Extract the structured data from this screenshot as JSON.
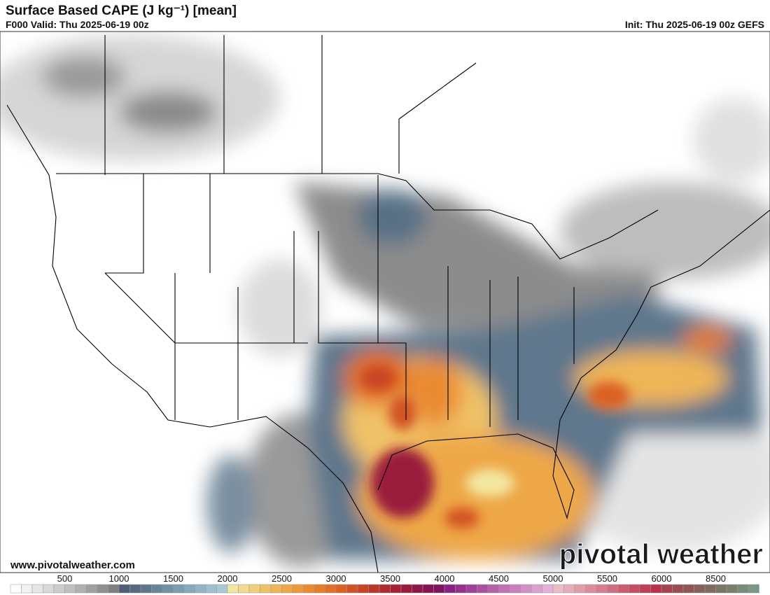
{
  "header": {
    "title": "Surface Based CAPE (J kg⁻¹) [mean]",
    "valid": "F000 Valid: Thu 2025-06-19 00z",
    "init": "Init: Thu 2025-06-19 00z GEFS"
  },
  "footer": {
    "url": "www.pivotalweather.com",
    "watermark": "pivotal weather"
  },
  "colorbar": {
    "labels": [
      "500",
      "1000",
      "1500",
      "2000",
      "2500",
      "3000",
      "3500",
      "4000",
      "4500",
      "5000",
      "5500",
      "6000",
      "8500"
    ],
    "colors": [
      "#ffffff",
      "#f2f2f2",
      "#e6e6e6",
      "#d9d9d9",
      "#cccccc",
      "#bfbfbf",
      "#b0b0b0",
      "#a0a0a0",
      "#8f8f8f",
      "#7f7f7f",
      "#4f5f73",
      "#576a7f",
      "#5f778c",
      "#688498",
      "#7191a4",
      "#7b9db0",
      "#86a9bb",
      "#92b4c4",
      "#9ebfcd",
      "#aac8d5",
      "#f3e6a0",
      "#f2db8c",
      "#f1cf79",
      "#f0c267",
      "#efb556",
      "#eea747",
      "#ed993a",
      "#ea8b30",
      "#e67d29",
      "#e26f24",
      "#dc6022",
      "#d35223",
      "#c94426",
      "#bd3729",
      "#b02b2d",
      "#a52233",
      "#9a1b3c",
      "#901647",
      "#871452",
      "#7f145e",
      "#8a1f86",
      "#95308f",
      "#a04098",
      "#ab50a1",
      "#b660aa",
      "#c070b3",
      "#ca80bc",
      "#d390c5",
      "#dca0cd",
      "#e5b0d6",
      "#eabdc6",
      "#e6adb8",
      "#e19daa",
      "#dc8d9c",
      "#d77d8e",
      "#d16d80",
      "#cb5d72",
      "#c54d65",
      "#bf3e58",
      "#b8304c",
      "#a8424c",
      "#9b4d50",
      "#8f5754",
      "#876159",
      "#7f6b5f",
      "#7a7565",
      "#77806d",
      "#778b78",
      "#7a9784"
    ]
  }
}
